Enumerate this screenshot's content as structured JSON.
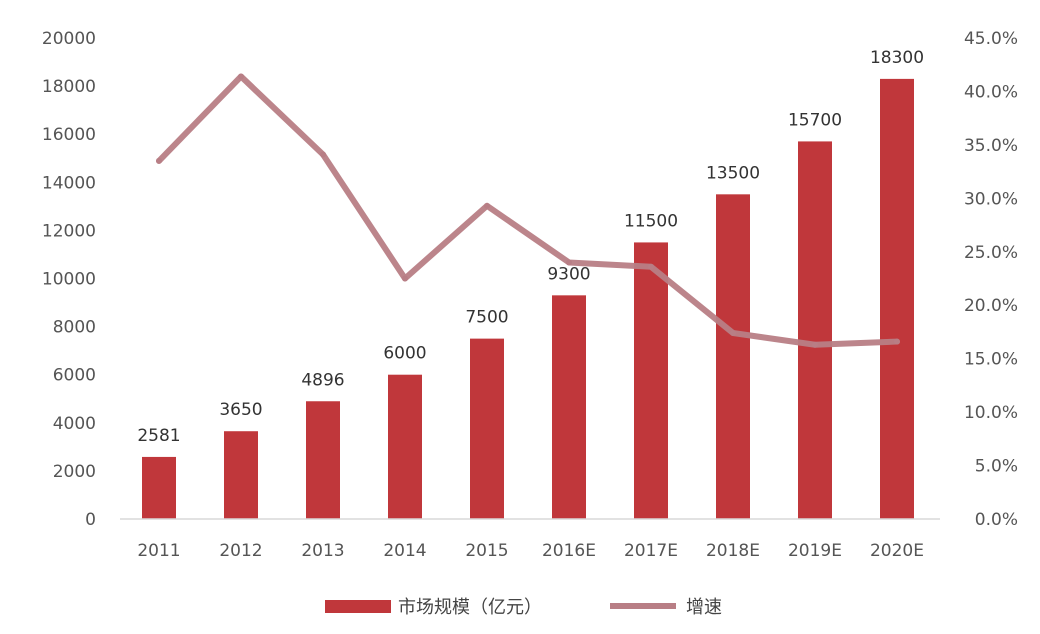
{
  "chart_data": {
    "type": "bar",
    "categories": [
      "2011",
      "2012",
      "2013",
      "2014",
      "2015",
      "2016E",
      "2017E",
      "2018E",
      "2019E",
      "2020E"
    ],
    "series": [
      {
        "name": "市场规模（亿元）",
        "type": "bar",
        "axis": "left",
        "values": [
          2581,
          3650,
          4896,
          6000,
          7500,
          9300,
          11500,
          13500,
          15700,
          18300
        ],
        "data_labels": [
          "2581",
          "3650",
          "4896",
          "6000",
          "7500",
          "9300",
          "11500",
          "13500",
          "15700",
          "18300"
        ]
      },
      {
        "name": "增速",
        "type": "line",
        "axis": "right",
        "values": [
          33.5,
          41.4,
          34.1,
          22.5,
          29.3,
          24.0,
          23.6,
          17.4,
          16.3,
          16.6
        ]
      }
    ],
    "left_axis": {
      "min": 0,
      "max": 20000,
      "ticks": [
        "0",
        "2000",
        "4000",
        "6000",
        "8000",
        "10000",
        "12000",
        "14000",
        "16000",
        "18000",
        "20000"
      ]
    },
    "right_axis": {
      "min": 0,
      "max": 45,
      "ticks": [
        "0.0%",
        "5.0%",
        "10.0%",
        "15.0%",
        "20.0%",
        "25.0%",
        "30.0%",
        "35.0%",
        "40.0%",
        "45.0%"
      ]
    },
    "colors": {
      "bar": "#C0373B",
      "line": "#B87E85"
    },
    "legend_position": "bottom",
    "grid": false
  }
}
